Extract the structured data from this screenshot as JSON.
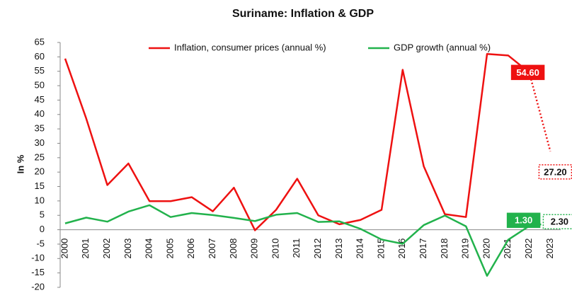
{
  "chart_data": {
    "type": "line",
    "title": "Suriname: Inflation & GDP",
    "y_label": "In %",
    "categories": [
      "2000",
      "2001",
      "2002",
      "2003",
      "2004",
      "2005",
      "2006",
      "2007",
      "2008",
      "2009",
      "2010",
      "2011",
      "2012",
      "2013",
      "2014",
      "2015",
      "2016",
      "2017",
      "2018",
      "2019",
      "2020",
      "2021",
      "2022",
      "2023"
    ],
    "series": [
      {
        "name": "Inflation, consumer prices (annual %)",
        "color": "#ee1111",
        "values": [
          59.4,
          38.6,
          15.5,
          23.0,
          9.9,
          9.9,
          11.3,
          6.4,
          14.6,
          -0.2,
          6.9,
          17.7,
          5.0,
          1.9,
          3.4,
          6.9,
          55.5,
          22.0,
          5.4,
          4.4,
          61.0,
          60.5,
          54.6,
          27.2
        ],
        "value_labels": [
          null,
          null,
          null,
          null,
          null,
          null,
          null,
          null,
          null,
          null,
          null,
          null,
          null,
          null,
          null,
          null,
          null,
          null,
          null,
          null,
          null,
          null,
          "54.60",
          "27.20"
        ]
      },
      {
        "name": "GDP growth (annual %)",
        "color": "#22b24c",
        "values": [
          2.2,
          4.2,
          2.8,
          6.3,
          8.5,
          4.4,
          5.8,
          5.1,
          4.1,
          3.0,
          5.2,
          5.8,
          2.7,
          2.9,
          0.3,
          -3.4,
          -4.9,
          1.6,
          4.9,
          1.2,
          -16.0,
          -3.5,
          1.3,
          2.3
        ],
        "value_labels": [
          null,
          null,
          null,
          null,
          null,
          null,
          null,
          null,
          null,
          null,
          null,
          null,
          null,
          null,
          null,
          null,
          null,
          null,
          null,
          null,
          null,
          null,
          "1.30",
          "2.30"
        ]
      }
    ],
    "projection_start": "2022",
    "ylim": [
      -20,
      65
    ],
    "yticks": [
      -20,
      -15,
      -10,
      -5,
      0,
      5,
      10,
      15,
      20,
      25,
      30,
      35,
      40,
      45,
      50,
      55,
      60,
      65
    ],
    "grid": false,
    "legend": "top"
  }
}
